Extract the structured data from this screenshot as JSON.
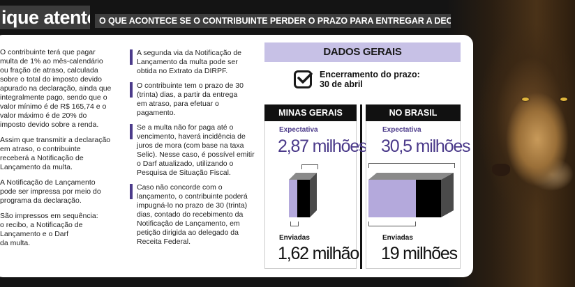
{
  "header": {
    "title": "ique atento",
    "subtitle": "O QUE ACONTECE SE O CONTRIBUINTE PERDER O PRAZO PARA ENTREGAR A DECLARAÇÃO"
  },
  "left_column": [
    "O contribuinte terá que pagar\nmulta de 1% ao mês-calendário\nou fração de atraso, calculada\nsobre o total do imposto devido\napurado na declaração, ainda que\nintegralmente pago, sendo que o\nvalor mínimo é de R$ 165,74 e o\nvalor máximo é de 20% do\nimposto devido sobre a renda.",
    "Assim que transmitir a declaração\nem atraso, o contribuinte\nreceberá a Notificação de\nLançamento da multa.",
    "A Notificação de Lançamento\npode ser impressa por meio do\nprograma da declaração.",
    "São impressos em sequência:\no recibo, a Notificação de\nLançamento e o Darf\nda multa."
  ],
  "middle_column": [
    "A segunda via da Notificação de\nLançamento da multa pode ser\nobtida no Extrato da DIRPF.",
    "O contribuinte tem o prazo de 30\n(trinta) dias, a partir da entrega\nem atraso, para efetuar o\npagamento.",
    "Se a multa não for paga até o\nvencimento, haverá incidência de\njuros de mora (com base na taxa\nSelic). Nesse caso, é possível emitir\no Darf atualizado, utilizando o\nPesquisa de Situação Fiscal.",
    "Caso não concorde com o\nlançamento, o contribuinte poderá\nimpugná-lo no prazo de 30 (trinta)\ndias, contado do recebimento da\nNotificação de Lançamento, em\npetição dirigida ao delegado da\nReceita Federal."
  ],
  "dados_gerais": {
    "title": "DADOS GERAIS",
    "deadline": "Encerramento do prazo:\n30 de abril",
    "icon": "checkbox-icon"
  },
  "regions": {
    "mg": {
      "name": "MINAS GERAIS",
      "expected_label": "Expectativa",
      "expected_value": "2,87 milhões",
      "sent_label": "Enviadas",
      "sent_value": "1,62 milhão"
    },
    "br": {
      "name": "NO BRASIL",
      "expected_label": "Expectativa",
      "expected_value": "30,5 milhões",
      "sent_label": "Enviadas",
      "sent_value": "19 milhões"
    }
  },
  "colors": {
    "accent": "#4b3a8a",
    "lavender": "#c7c1e6",
    "dark": "#111111",
    "header_bg": "#3c3c3c"
  }
}
